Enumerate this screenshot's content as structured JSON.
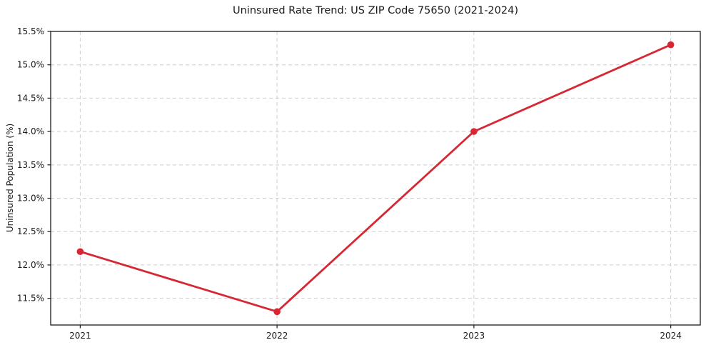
{
  "chart_data": {
    "type": "line",
    "title": "Uninsured Rate Trend: US ZIP Code 75650 (2021-2024)",
    "xlabel": "",
    "ylabel": "Uninsured Population (%)",
    "x": [
      2021,
      2022,
      2023,
      2024
    ],
    "series": [
      {
        "name": "uninsured-rate",
        "values": [
          12.2,
          11.3,
          14.0,
          15.3
        ]
      }
    ],
    "xlim": [
      2020.85,
      2024.15
    ],
    "ylim": [
      11.1,
      15.5
    ],
    "xticks": {
      "values": [
        2021,
        2022,
        2023,
        2024
      ],
      "labels": [
        "2021",
        "2022",
        "2023",
        "2024"
      ]
    },
    "yticks": {
      "values": [
        11.5,
        12.0,
        12.5,
        13.0,
        13.5,
        14.0,
        14.5,
        15.0,
        15.5
      ],
      "labels": [
        "11.5%",
        "12.0%",
        "12.5%",
        "13.0%",
        "13.5%",
        "14.0%",
        "14.5%",
        "15.0%",
        "15.5%"
      ]
    },
    "grid": true,
    "grid_style": "dashed",
    "legend": false,
    "colors": {
      "line": "#d62733",
      "marker": "#d62733",
      "grid": "#cdcdcd",
      "spine": "#1a1a1a",
      "text": "#1a1a1a",
      "background": "#ffffff"
    }
  }
}
